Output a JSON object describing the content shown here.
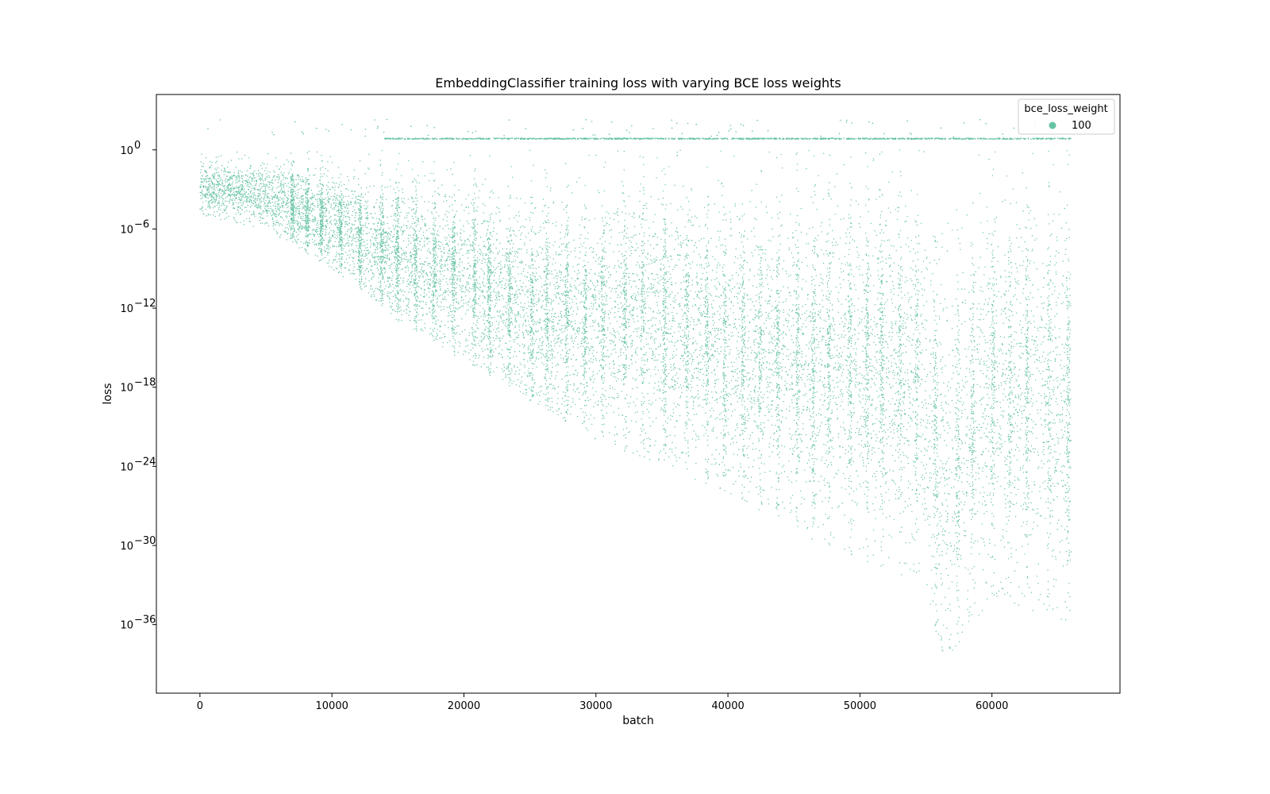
{
  "chart_data": {
    "type": "scatter",
    "title": "EmbeddingClassifier training loss with varying BCE loss weights",
    "xlabel": "batch",
    "ylabel": "loss",
    "xlim": [
      -3300,
      69700
    ],
    "ylim_log10": [
      -41.2,
      4.2
    ],
    "y_scale": "log",
    "x_ticks": [
      0,
      10000,
      20000,
      30000,
      40000,
      50000,
      60000
    ],
    "y_ticks_exponent": [
      0,
      -6,
      -12,
      -18,
      -24,
      -30,
      -36
    ],
    "y_tick_base": "10",
    "grid": false,
    "legend": {
      "title": "bce_loss_weight",
      "placement": "top-right",
      "entries": [
        {
          "label": "100",
          "color": "#66c2a5"
        }
      ]
    },
    "series": [
      {
        "name": "100",
        "color": "#66c2a5",
        "description_points": "dense scatter of ~66000 per-batch loss values; representative envelope below (x in batches, loss as log10)",
        "envelope": [
          {
            "x": 0,
            "log10_median": -3,
            "log10_min": -5,
            "log10_max": 0
          },
          {
            "x": 5000,
            "log10_median": -3.5,
            "log10_min": -6,
            "log10_max": 0
          },
          {
            "x": 10000,
            "log10_median": -5.5,
            "log10_min": -9,
            "log10_max": 0
          },
          {
            "x": 15000,
            "log10_median": -8,
            "log10_min": -13,
            "log10_max": 0
          },
          {
            "x": 20000,
            "log10_median": -10,
            "log10_min": -16,
            "log10_max": 0
          },
          {
            "x": 25000,
            "log10_median": -12,
            "log10_min": -19,
            "log10_max": 0
          },
          {
            "x": 30000,
            "log10_median": -13,
            "log10_min": -22,
            "log10_max": 0
          },
          {
            "x": 35000,
            "log10_median": -13,
            "log10_min": -24,
            "log10_max": 0
          },
          {
            "x": 40000,
            "log10_median": -15,
            "log10_min": -26,
            "log10_max": 0
          },
          {
            "x": 45000,
            "log10_median": -16,
            "log10_min": -29,
            "log10_max": 0
          },
          {
            "x": 50000,
            "log10_median": -16,
            "log10_min": -31,
            "log10_max": 0
          },
          {
            "x": 55000,
            "log10_median": -18,
            "log10_min": -33,
            "log10_max": 0
          },
          {
            "x": 56300,
            "log10_median": -25,
            "log10_min": -39,
            "log10_max": 0
          },
          {
            "x": 60000,
            "log10_median": -18,
            "log10_min": -34,
            "log10_max": 0
          },
          {
            "x": 66000,
            "log10_median": -19,
            "log10_min": -36,
            "log10_max": 0
          }
        ],
        "high_plateau_log10": 0.85,
        "high_plateau_start_x": 14000
      }
    ]
  }
}
